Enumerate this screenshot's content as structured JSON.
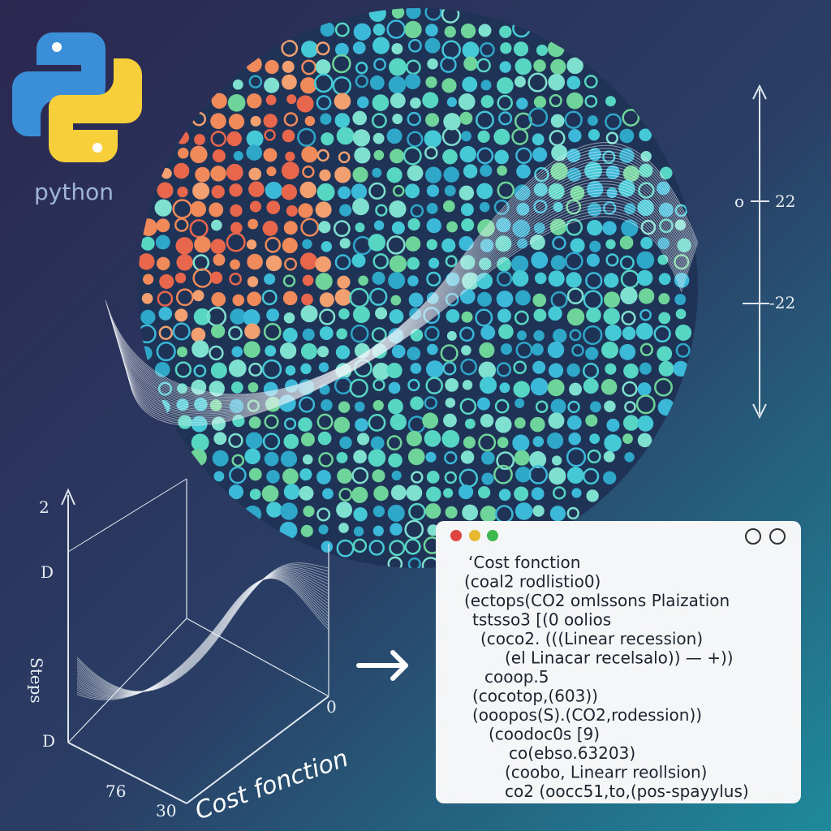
{
  "logo": {
    "label": "python"
  },
  "right_axis": {
    "labels": [
      "o",
      "22",
      "-22"
    ]
  },
  "left_chart": {
    "y_labels": [
      "2",
      "D",
      "D"
    ],
    "y_title": "Steps",
    "x_labels": [
      "76",
      "30",
      "0"
    ],
    "x_title": "Cost fonction"
  },
  "code_window": {
    "lines": [
      "‘Cost fonction",
      "(coal2 rodlistio0)",
      "(ectops(CO2 omlssons Plaization",
      "tstsso3 [(0 oolios",
      "(coco2. (((Linear recession)",
      "(el Linacar recelsalo)) — +))",
      "cooop.5",
      "(cocotop,(603))",
      "(ooopos(S).(CO2,rodession))",
      "(coodoc0s [9)",
      "co(ebso.63203)",
      "(coobo, Linearr reollsion)",
      "co2 (oocc51,to,(pos-spayylus)"
    ]
  }
}
